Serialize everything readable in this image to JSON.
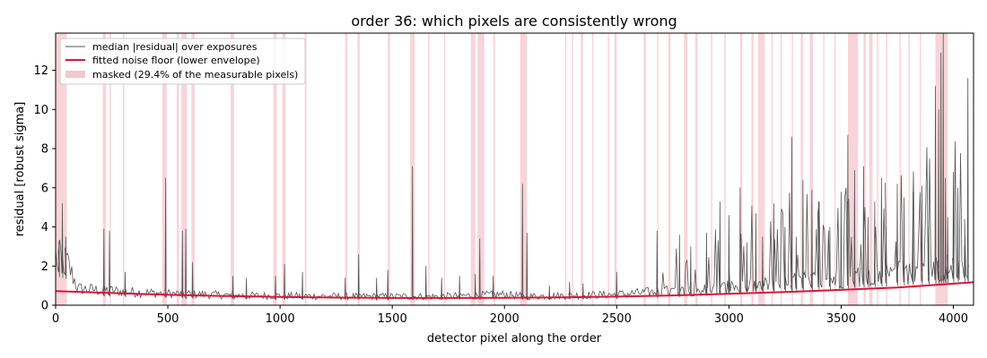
{
  "chart_data": {
    "type": "line",
    "title": "order 36: which pixels are consistently wrong",
    "xlabel": "detector pixel along the order",
    "ylabel": "residual [robust sigma]",
    "xlim": [
      0,
      4090
    ],
    "ylim": [
      0,
      13.9
    ],
    "xticks": [
      0,
      500,
      1000,
      1500,
      2000,
      2500,
      3000,
      3500,
      4000
    ],
    "yticks": [
      0,
      2,
      4,
      6,
      8,
      10,
      12
    ],
    "grid": false,
    "legend_position": "top-left",
    "colors": {
      "residual": "#555555",
      "noise_floor": "#dc143c",
      "mask": "#f4c6cd"
    },
    "series": [
      {
        "name": "median |residual| over exposures",
        "type": "line",
        "base": [
          [
            0,
            2.5
          ],
          [
            50,
            2.2
          ],
          [
            100,
            0.85
          ],
          [
            300,
            0.7
          ],
          [
            500,
            0.6
          ],
          [
            800,
            0.5
          ],
          [
            1000,
            0.48
          ],
          [
            1300,
            0.45
          ],
          [
            1500,
            0.45
          ],
          [
            1700,
            0.45
          ],
          [
            1850,
            0.5
          ],
          [
            2000,
            0.55
          ],
          [
            2100,
            0.45
          ],
          [
            2300,
            0.5
          ],
          [
            2500,
            0.55
          ],
          [
            2700,
            0.7
          ],
          [
            2900,
            0.8
          ],
          [
            3100,
            1.0
          ],
          [
            3300,
            1.2
          ],
          [
            3500,
            1.4
          ],
          [
            3700,
            1.6
          ],
          [
            3900,
            1.8
          ],
          [
            4050,
            2.0
          ]
        ],
        "spikes": [
          [
            15,
            3.3
          ],
          [
            30,
            5.2
          ],
          [
            45,
            3.5
          ],
          [
            215,
            3.9
          ],
          [
            240,
            3.8
          ],
          [
            310,
            1.7
          ],
          [
            490,
            6.5
          ],
          [
            565,
            3.8
          ],
          [
            580,
            3.9
          ],
          [
            610,
            2.2
          ],
          [
            790,
            1.5
          ],
          [
            850,
            1.4
          ],
          [
            980,
            1.5
          ],
          [
            1020,
            2.1
          ],
          [
            1100,
            1.7
          ],
          [
            1290,
            1.4
          ],
          [
            1350,
            2.6
          ],
          [
            1430,
            1.4
          ],
          [
            1480,
            1.8
          ],
          [
            1590,
            7.1
          ],
          [
            1650,
            2.0
          ],
          [
            1720,
            1.4
          ],
          [
            1800,
            1.5
          ],
          [
            1870,
            1.6
          ],
          [
            1890,
            3.4
          ],
          [
            1950,
            1.5
          ],
          [
            2080,
            6.2
          ],
          [
            2100,
            3.7
          ],
          [
            2200,
            1.0
          ],
          [
            2290,
            1.2
          ],
          [
            2350,
            1.1
          ],
          [
            2500,
            1.7
          ],
          [
            2680,
            3.8
          ],
          [
            2780,
            3.6
          ],
          [
            2830,
            3.0
          ],
          [
            2900,
            3.7
          ],
          [
            2960,
            5.3
          ],
          [
            3000,
            4.6
          ],
          [
            3050,
            6.0
          ],
          [
            3080,
            3.2
          ],
          [
            3120,
            4.7
          ],
          [
            3150,
            3.5
          ],
          [
            3200,
            5.2
          ],
          [
            3250,
            4.0
          ],
          [
            3280,
            8.6
          ],
          [
            3300,
            3.5
          ],
          [
            3330,
            6.4
          ],
          [
            3370,
            5.9
          ],
          [
            3400,
            5.3
          ],
          [
            3450,
            4.0
          ],
          [
            3500,
            5.8
          ],
          [
            3530,
            8.7
          ],
          [
            3560,
            6.9
          ],
          [
            3600,
            7.1
          ],
          [
            3620,
            4.5
          ],
          [
            3650,
            5.3
          ],
          [
            3680,
            6.5
          ],
          [
            3700,
            4.0
          ],
          [
            3750,
            6.2
          ],
          [
            3780,
            5.5
          ],
          [
            3820,
            5.8
          ],
          [
            3860,
            6.1
          ],
          [
            3890,
            4.0
          ],
          [
            3920,
            11.2
          ],
          [
            3935,
            10.0
          ],
          [
            3945,
            12.9
          ],
          [
            3955,
            13.9
          ],
          [
            3965,
            6.5
          ],
          [
            3975,
            4.5
          ],
          [
            4000,
            6.8
          ],
          [
            4020,
            6.0
          ],
          [
            4050,
            3.1
          ],
          [
            4065,
            11.6
          ]
        ]
      },
      {
        "name": "fitted noise floor (lower envelope)",
        "type": "line",
        "points": [
          [
            0,
            0.72
          ],
          [
            250,
            0.62
          ],
          [
            500,
            0.53
          ],
          [
            750,
            0.47
          ],
          [
            1000,
            0.42
          ],
          [
            1250,
            0.39
          ],
          [
            1500,
            0.37
          ],
          [
            1750,
            0.37
          ],
          [
            2000,
            0.38
          ],
          [
            2250,
            0.4
          ],
          [
            2500,
            0.44
          ],
          [
            2750,
            0.5
          ],
          [
            3000,
            0.58
          ],
          [
            3250,
            0.67
          ],
          [
            3500,
            0.78
          ],
          [
            3750,
            0.9
          ],
          [
            4090,
            1.17
          ]
        ]
      },
      {
        "name": "masked (29.4% of the measurable pixels)",
        "type": "span",
        "spans": [
          [
            0,
            50
          ],
          [
            210,
            225
          ],
          [
            240,
            246
          ],
          [
            300,
            306
          ],
          [
            475,
            495
          ],
          [
            540,
            550
          ],
          [
            560,
            585
          ],
          [
            605,
            620
          ],
          [
            780,
            795
          ],
          [
            970,
            985
          ],
          [
            1010,
            1025
          ],
          [
            1110,
            1118
          ],
          [
            1290,
            1300
          ],
          [
            1345,
            1355
          ],
          [
            1480,
            1490
          ],
          [
            1580,
            1600
          ],
          [
            1660,
            1666
          ],
          [
            1730,
            1736
          ],
          [
            1850,
            1870
          ],
          [
            1880,
            1910
          ],
          [
            1950,
            1958
          ],
          [
            2070,
            2100
          ],
          [
            2270,
            2276
          ],
          [
            2300,
            2306
          ],
          [
            2340,
            2350
          ],
          [
            2390,
            2396
          ],
          [
            2460,
            2466
          ],
          [
            2490,
            2500
          ],
          [
            2620,
            2630
          ],
          [
            2680,
            2686
          ],
          [
            2730,
            2740
          ],
          [
            2800,
            2815
          ],
          [
            2850,
            2860
          ],
          [
            2920,
            2926
          ],
          [
            2980,
            2986
          ],
          [
            3050,
            3060
          ],
          [
            3100,
            3110
          ],
          [
            3130,
            3160
          ],
          [
            3190,
            3196
          ],
          [
            3230,
            3236
          ],
          [
            3280,
            3286
          ],
          [
            3320,
            3330
          ],
          [
            3360,
            3375
          ],
          [
            3420,
            3426
          ],
          [
            3470,
            3476
          ],
          [
            3530,
            3575
          ],
          [
            3600,
            3610
          ],
          [
            3625,
            3640
          ],
          [
            3660,
            3666
          ],
          [
            3700,
            3706
          ],
          [
            3760,
            3766
          ],
          [
            3800,
            3806
          ],
          [
            3850,
            3856
          ],
          [
            3920,
            3975
          ]
        ]
      }
    ]
  }
}
